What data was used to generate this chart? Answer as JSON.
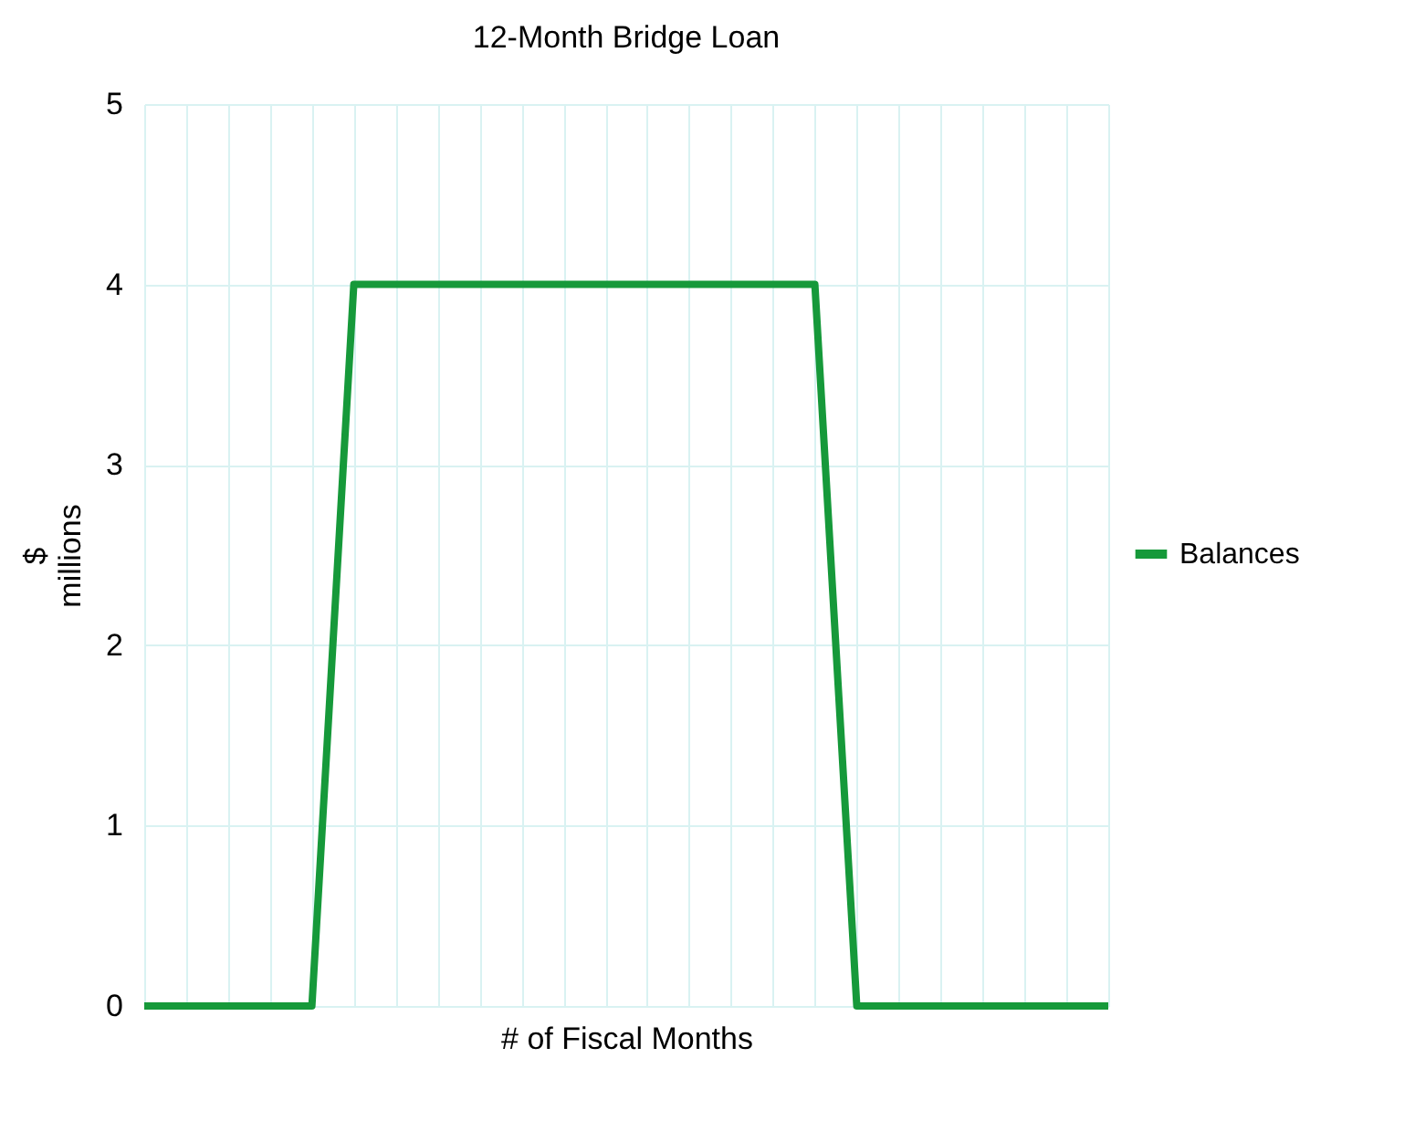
{
  "chart_data": {
    "type": "line",
    "title": "12-Month Bridge Loan",
    "xlabel": "# of Fiscal Months",
    "ylabel": "$\nmillions",
    "categories": [
      null,
      null,
      null,
      null,
      null,
      null,
      null,
      null,
      null,
      null,
      null,
      null,
      null,
      null,
      null,
      null,
      null,
      null,
      null,
      null,
      null,
      null,
      null,
      null
    ],
    "series": [
      {
        "name": "Balances",
        "color": "#16993a",
        "values": [
          0,
          0,
          0,
          0,
          0,
          4,
          4,
          4,
          4,
          4,
          4,
          4,
          4,
          4,
          4,
          4,
          4,
          0,
          0,
          0,
          0,
          0,
          0,
          0
        ]
      }
    ],
    "ylim": [
      0,
      5
    ],
    "yticks": [
      0,
      1,
      2,
      3,
      4,
      5
    ],
    "grid": true,
    "legend": "right",
    "tick_labels": "y",
    "marker": "none",
    "line_style": "solid"
  }
}
